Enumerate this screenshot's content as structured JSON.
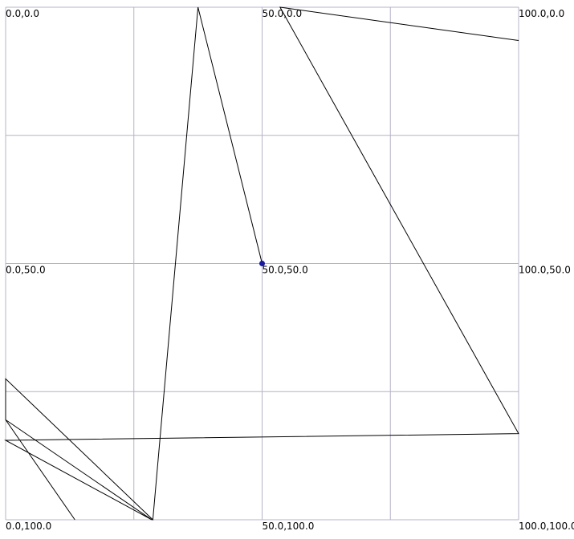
{
  "coordinate_plot": {
    "x_range": [
      0,
      100
    ],
    "y_range": [
      0,
      100
    ],
    "grid_step": 25,
    "labels": [
      {
        "text": "0.0,0.0",
        "x": 0,
        "y": 0
      },
      {
        "text": "50.0,0.0",
        "x": 50,
        "y": 0
      },
      {
        "text": "100.0,0.0",
        "x": 100,
        "y": 0
      },
      {
        "text": "0.0,50.0",
        "x": 0,
        "y": 50
      },
      {
        "text": "50.0,50.0",
        "x": 50,
        "y": 50
      },
      {
        "text": "100.0,50.0",
        "x": 100,
        "y": 50
      },
      {
        "text": "0.0,100.0",
        "x": 0,
        "y": 100
      },
      {
        "text": "50.0,100.0",
        "x": 50,
        "y": 100
      },
      {
        "text": "100.0,100.0",
        "x": 100,
        "y": 100
      }
    ],
    "path_points": [
      [
        50.0,
        50.0
      ],
      [
        37.5,
        0.0
      ],
      [
        28.7,
        100.0
      ],
      [
        0.0,
        72.5
      ],
      [
        0.0,
        80.5
      ],
      [
        13.5,
        100.0
      ],
      [
        0.0,
        80.5
      ],
      [
        28.5,
        100.0
      ],
      [
        0.0,
        84.5
      ],
      [
        100.0,
        83.2
      ],
      [
        53.5,
        0.0
      ],
      [
        100.0,
        6.5
      ]
    ],
    "current_position": [
      50.0,
      50.0
    ],
    "colors": {
      "grid": "#b4b4c8",
      "path": "#000000",
      "marker": "#1a1aa0"
    }
  }
}
